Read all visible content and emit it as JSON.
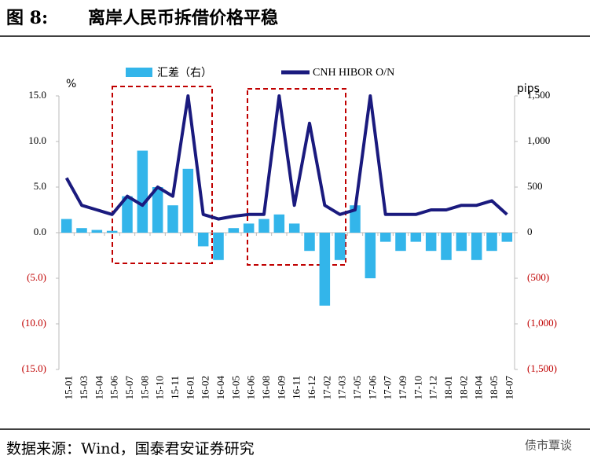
{
  "chart_data": {
    "type": "bar_line",
    "figure_label": "图 8:",
    "title": "离岸人民币拆借价格平稳",
    "source": "数据来源：Wind，国泰君安证券研究",
    "watermark": "债市覃谈",
    "y_unit": "%",
    "y2_unit": "pips",
    "categories": [
      "15-01",
      "15-03",
      "15-04",
      "15-06",
      "15-07",
      "15-08",
      "15-10",
      "15-11",
      "16-01",
      "16-02",
      "16-04",
      "16-05",
      "16-06",
      "16-08",
      "16-09",
      "16-11",
      "16-12",
      "17-02",
      "17-03",
      "17-05",
      "17-06",
      "17-07",
      "17-09",
      "17-10",
      "17-12",
      "18-01",
      "18-02",
      "18-04",
      "18-05",
      "18-07"
    ],
    "series": [
      {
        "name": "汇差（右）",
        "kind": "bar",
        "axis": "y2",
        "color": "#33b5ea",
        "values": [
          150,
          50,
          30,
          20,
          400,
          900,
          500,
          300,
          700,
          -150,
          -300,
          50,
          100,
          150,
          200,
          100,
          -200,
          -800,
          -300,
          300,
          -500,
          -100,
          -200,
          -100,
          -200,
          -300,
          -200,
          -300,
          -200,
          -100
        ]
      },
      {
        "name": "CNH HIBOR O/N",
        "kind": "line",
        "axis": "y",
        "color": "#1a1a7e",
        "values": [
          6,
          3,
          2.5,
          2,
          4,
          3,
          5,
          4,
          15,
          2,
          1.5,
          1.8,
          2,
          2,
          15,
          3,
          12,
          3,
          2,
          2.5,
          15,
          2,
          2,
          2,
          2.5,
          2.5,
          3,
          3,
          3.5,
          2
        ]
      }
    ],
    "ylim": [
      -15,
      15
    ],
    "yticks": [
      {
        "value": 15,
        "label": "15.0"
      },
      {
        "value": 10,
        "label": "10.0"
      },
      {
        "value": 5,
        "label": "5.0"
      },
      {
        "value": 0,
        "label": "0.0"
      },
      {
        "value": -5,
        "label": "(5.0)"
      },
      {
        "value": -10,
        "label": "(10.0)"
      },
      {
        "value": -15,
        "label": "(15.0)"
      }
    ],
    "y2lim": [
      -1500,
      1500
    ],
    "y2ticks": [
      {
        "value": 1500,
        "label": "1,500"
      },
      {
        "value": 1000,
        "label": "1,000"
      },
      {
        "value": 500,
        "label": "500"
      },
      {
        "value": 0,
        "label": "0"
      },
      {
        "value": -500,
        "label": "(500)"
      },
      {
        "value": -1000,
        "label": "(1,000)"
      },
      {
        "value": -1500,
        "label": "(1,500)"
      }
    ],
    "negative_tick_color": "#c00000"
  }
}
